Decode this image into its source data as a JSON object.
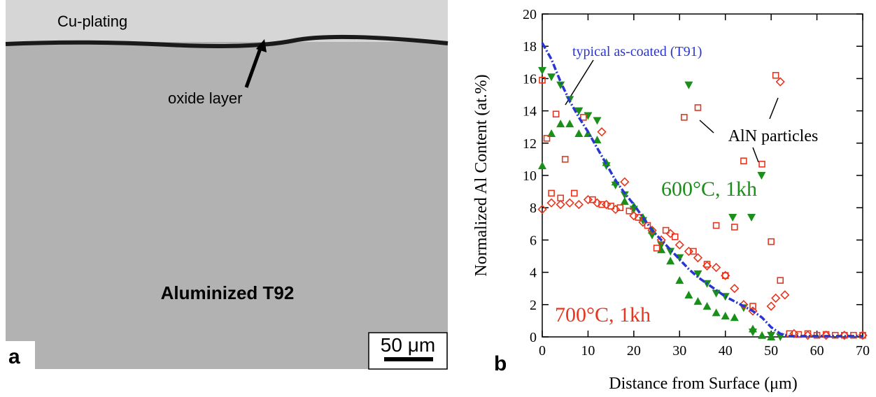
{
  "panel_a": {
    "label": "a",
    "top_layer": "Cu-plating",
    "oxide": "oxide layer",
    "sample": "Aluminized T92",
    "scale_bar": "50 μm"
  },
  "chart_data": {
    "type": "scatter",
    "panel_label": "b",
    "x_label": "Distance from Surface (μm)",
    "y_label": "Normalized Al Content (at.%)",
    "annotation": "AlN particles",
    "xlim": [
      0,
      70
    ],
    "ylim": [
      0,
      20
    ],
    "xticks": [
      0,
      10,
      20,
      30,
      40,
      50,
      60,
      70
    ],
    "yticks": [
      0,
      2,
      4,
      6,
      8,
      10,
      12,
      14,
      16,
      18,
      20
    ],
    "grid": false,
    "series": [
      {
        "name": "typical as-coated (T91)",
        "color": "#2a35d0",
        "marker": "line",
        "x": [
          0,
          2,
          4,
          6,
          8,
          10,
          12,
          14,
          16,
          18,
          20,
          22,
          24,
          26,
          28,
          30,
          32,
          34,
          36,
          38,
          40,
          42,
          44,
          46,
          48,
          50,
          52,
          54,
          56,
          58,
          60,
          62,
          64,
          66,
          68,
          70
        ],
        "values": [
          18.2,
          17.2,
          15.8,
          14.6,
          13.6,
          12.7,
          11.7,
          10.7,
          9.7,
          8.9,
          8.2,
          7.4,
          6.6,
          6.0,
          5.4,
          4.8,
          4.2,
          3.7,
          3.3,
          2.9,
          2.5,
          2.2,
          1.9,
          1.6,
          1.2,
          0.6,
          0.2,
          0.05,
          0.05,
          0.05,
          0.05,
          0.05,
          0.05,
          0.05,
          0.05,
          0.05
        ]
      },
      {
        "name": "600°C, 1kh",
        "color": "#1a8f1a",
        "marker": "triangle-down",
        "x": [
          0,
          2,
          4,
          6,
          8,
          10,
          12,
          14,
          16,
          18,
          20,
          22,
          24,
          26,
          28,
          30,
          32,
          34,
          36,
          38,
          40,
          41.6,
          44,
          45.7,
          46,
          47.9,
          50,
          52
        ],
        "values": [
          16.5,
          16.1,
          15.6,
          14.7,
          14.0,
          13.7,
          13.4,
          10.6,
          9.4,
          8.8,
          7.9,
          7.2,
          6.3,
          5.7,
          5.3,
          4.9,
          15.6,
          3.9,
          3.3,
          2.7,
          2.5,
          7.4,
          1.8,
          7.4,
          0.3,
          10.0,
          0.1,
          0.0
        ]
      },
      {
        "color": "#1a8f1a",
        "marker": "triangle-up",
        "x": [
          0,
          2,
          4,
          6,
          8,
          10,
          12,
          14,
          16,
          18,
          20,
          22,
          24,
          26,
          28,
          30,
          32,
          34,
          36,
          38,
          40,
          42,
          46,
          48,
          50
        ],
        "values": [
          10.6,
          12.6,
          13.2,
          13.2,
          12.6,
          12.6,
          12.2,
          10.8,
          9.6,
          8.4,
          8.1,
          7.4,
          6.6,
          5.4,
          4.7,
          3.5,
          2.6,
          2.2,
          1.9,
          1.5,
          1.3,
          1.2,
          0.5,
          0.1,
          0.0
        ]
      },
      {
        "name": "700°C, 1kh",
        "color": "#e8361e",
        "marker": "square",
        "x": [
          0,
          1,
          2,
          3,
          4,
          5,
          7,
          9,
          11,
          13,
          15,
          17,
          19,
          21,
          23,
          25,
          27,
          29,
          31,
          33,
          34,
          36,
          38,
          40,
          42,
          44,
          46,
          48,
          50,
          51,
          52,
          54,
          56,
          58,
          60,
          62,
          64,
          66,
          68,
          70
        ],
        "values": [
          15.9,
          12.3,
          8.9,
          13.8,
          8.6,
          11.0,
          8.9,
          13.6,
          8.5,
          8.2,
          8.1,
          8.0,
          7.8,
          7.4,
          6.9,
          5.5,
          6.6,
          6.2,
          13.6,
          5.3,
          14.2,
          4.5,
          6.9,
          3.8,
          6.8,
          10.9,
          1.9,
          10.7,
          5.9,
          16.2,
          3.5,
          0.2,
          0.15,
          0.2,
          0.1,
          0.15,
          0.1,
          0.1,
          0.1,
          0.1
        ]
      },
      {
        "color": "#e8361e",
        "marker": "diamond",
        "x": [
          0,
          2,
          4,
          6,
          8,
          10,
          12,
          13,
          14,
          16,
          18,
          20,
          22,
          24,
          26,
          28,
          30,
          32,
          34,
          36,
          38,
          40,
          42,
          44,
          46,
          50,
          51,
          52,
          53,
          55,
          58,
          62,
          66,
          70
        ],
        "values": [
          7.9,
          8.3,
          8.2,
          8.3,
          8.2,
          8.5,
          8.3,
          12.7,
          8.2,
          7.9,
          9.6,
          7.5,
          7.1,
          6.6,
          6.0,
          6.4,
          5.7,
          5.3,
          4.9,
          4.4,
          4.3,
          3.8,
          3.0,
          2.0,
          1.6,
          1.9,
          2.4,
          15.8,
          2.6,
          0.2,
          0.1,
          0.1,
          0.1,
          0.1
        ]
      }
    ]
  }
}
